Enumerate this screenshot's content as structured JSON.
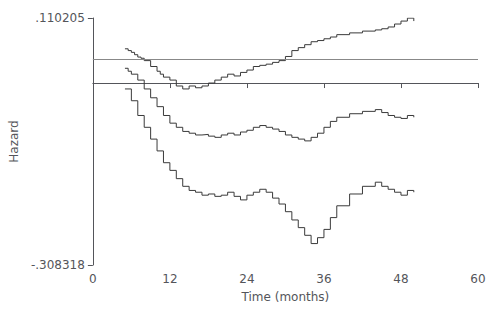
{
  "chart_data": {
    "type": "step",
    "xlabel": "Time (months)",
    "ylabel": "Hazard",
    "xlim": [
      0,
      60
    ],
    "xticks": [
      0,
      12,
      24,
      36,
      48,
      60
    ],
    "ylim": [
      -0.308318,
      0.110205
    ],
    "yticks": [
      {
        "value": -0.308318,
        "label": "-.308318"
      },
      {
        "value": 0.110205,
        "label": ".110205"
      }
    ],
    "grid": false,
    "series": [
      {
        "color": "#3a3a3a",
        "x": [
          5,
          5.5,
          6,
          6.5,
          7,
          7.5,
          8,
          9,
          10,
          10.5,
          11,
          12,
          13,
          14,
          15,
          16,
          17,
          18,
          19,
          20,
          21,
          22,
          23,
          24,
          25,
          26,
          27,
          28,
          29,
          30,
          31,
          32,
          33,
          34,
          35,
          36,
          37,
          38,
          40,
          42,
          44,
          45,
          46,
          47,
          48,
          49,
          50
        ],
        "values": [
          0.058,
          0.055,
          0.052,
          0.048,
          0.044,
          0.042,
          0.038,
          0.028,
          0.02,
          0.015,
          0.01,
          0.005,
          -0.005,
          -0.01,
          -0.005,
          -0.008,
          -0.005,
          0.0,
          0.005,
          0.01,
          0.015,
          0.012,
          0.018,
          0.022,
          0.028,
          0.03,
          0.032,
          0.035,
          0.038,
          0.045,
          0.055,
          0.06,
          0.065,
          0.07,
          0.072,
          0.075,
          0.078,
          0.082,
          0.085,
          0.088,
          0.09,
          0.092,
          0.095,
          0.1,
          0.105,
          0.11,
          0.105
        ]
      },
      {
        "color": "#3a3a3a",
        "x": [
          5,
          5.5,
          6,
          7,
          8,
          9,
          10,
          11,
          12,
          13,
          14,
          15,
          16,
          17,
          18,
          19,
          20,
          21,
          22,
          23,
          24,
          25,
          26,
          27,
          28,
          29,
          30,
          31,
          32,
          33,
          34,
          35,
          36,
          37,
          38,
          40,
          42,
          44,
          45,
          46,
          47,
          48,
          49,
          50
        ],
        "values": [
          0.025,
          0.02,
          0.015,
          0.005,
          -0.01,
          -0.025,
          -0.04,
          -0.055,
          -0.068,
          -0.075,
          -0.082,
          -0.085,
          -0.088,
          -0.087,
          -0.09,
          -0.092,
          -0.088,
          -0.085,
          -0.088,
          -0.083,
          -0.08,
          -0.075,
          -0.072,
          -0.075,
          -0.078,
          -0.082,
          -0.088,
          -0.092,
          -0.095,
          -0.098,
          -0.092,
          -0.085,
          -0.075,
          -0.065,
          -0.058,
          -0.052,
          -0.048,
          -0.045,
          -0.05,
          -0.055,
          -0.058,
          -0.06,
          -0.055,
          -0.058
        ]
      },
      {
        "color": "#3a3a3a",
        "x": [
          5,
          6,
          7,
          8,
          9,
          10,
          11,
          12,
          13,
          14,
          15,
          16,
          17,
          18,
          19,
          20,
          21,
          22,
          23,
          24,
          25,
          26,
          27,
          28,
          29,
          30,
          31,
          32,
          33,
          34,
          35,
          36,
          37,
          38,
          40,
          42,
          44,
          45,
          46,
          47,
          48,
          49,
          50
        ],
        "values": [
          -0.01,
          -0.03,
          -0.055,
          -0.075,
          -0.095,
          -0.115,
          -0.135,
          -0.148,
          -0.162,
          -0.175,
          -0.182,
          -0.185,
          -0.19,
          -0.188,
          -0.192,
          -0.19,
          -0.185,
          -0.192,
          -0.198,
          -0.19,
          -0.185,
          -0.18,
          -0.185,
          -0.195,
          -0.205,
          -0.218,
          -0.232,
          -0.245,
          -0.258,
          -0.272,
          -0.262,
          -0.248,
          -0.228,
          -0.208,
          -0.188,
          -0.175,
          -0.168,
          -0.175,
          -0.18,
          -0.185,
          -0.19,
          -0.182,
          -0.185
        ]
      }
    ],
    "reference_line": {
      "y": 0.042,
      "color": "#888888"
    }
  }
}
